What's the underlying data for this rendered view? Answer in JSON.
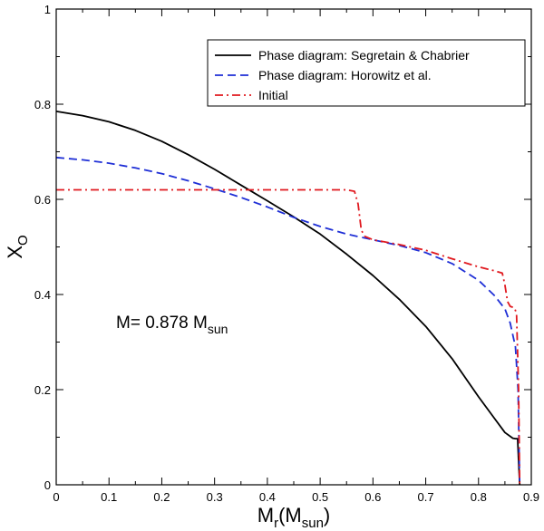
{
  "chart_data": {
    "type": "line",
    "title": "",
    "xlabel": "M",
    "xlabel_sub": "r",
    "xlabel_unit": "(M",
    "xlabel_unit_sub": "sun",
    "xlabel_close": ")",
    "ylabel": "X",
    "ylabel_sub": "O",
    "xlim": [
      0,
      0.9
    ],
    "ylim": [
      0,
      1
    ],
    "xticks": [
      0,
      0.1,
      0.2,
      0.3,
      0.4,
      0.5,
      0.6,
      0.7,
      0.8,
      0.9
    ],
    "yticks": [
      0,
      0.2,
      0.4,
      0.6,
      0.8,
      1
    ],
    "xtick_labels": [
      "0",
      "0.1",
      "0.2",
      "0.3",
      "0.4",
      "0.5",
      "0.6",
      "0.7",
      "0.8",
      "0.9"
    ],
    "ytick_labels": [
      "0",
      "0.2",
      "0.4",
      "0.6",
      "0.8",
      "1"
    ],
    "grid": false,
    "legend_position": "top-right",
    "annotation": {
      "text": "M= 0.878 M",
      "sub": "sun"
    },
    "series": [
      {
        "name": "Phase diagram: Segretain & Chabrier",
        "color": "#000000",
        "style": "solid",
        "x": [
          0,
          0.05,
          0.1,
          0.15,
          0.2,
          0.25,
          0.3,
          0.35,
          0.4,
          0.45,
          0.5,
          0.55,
          0.6,
          0.65,
          0.7,
          0.75,
          0.8,
          0.83,
          0.85,
          0.865,
          0.87,
          0.874,
          0.876,
          0.878
        ],
        "y": [
          0.785,
          0.776,
          0.763,
          0.745,
          0.722,
          0.694,
          0.663,
          0.63,
          0.597,
          0.563,
          0.527,
          0.485,
          0.44,
          0.39,
          0.333,
          0.265,
          0.185,
          0.14,
          0.11,
          0.098,
          0.097,
          0.097,
          0.05,
          0
        ]
      },
      {
        "name": "Phase diagram: Horowitz et al.",
        "color": "#1f2fd6",
        "style": "dashed",
        "x": [
          0,
          0.05,
          0.1,
          0.15,
          0.2,
          0.25,
          0.3,
          0.35,
          0.4,
          0.45,
          0.5,
          0.55,
          0.6,
          0.65,
          0.7,
          0.75,
          0.8,
          0.83,
          0.85,
          0.86,
          0.87,
          0.875,
          0.878
        ],
        "y": [
          0.688,
          0.683,
          0.676,
          0.666,
          0.654,
          0.639,
          0.622,
          0.604,
          0.584,
          0.562,
          0.543,
          0.527,
          0.515,
          0.503,
          0.488,
          0.465,
          0.43,
          0.398,
          0.37,
          0.34,
          0.29,
          0.2,
          0
        ]
      },
      {
        "name": "Initial",
        "color": "#e0191f",
        "style": "dashdot",
        "x": [
          0,
          0.05,
          0.1,
          0.2,
          0.3,
          0.4,
          0.5,
          0.55,
          0.565,
          0.572,
          0.578,
          0.585,
          0.6,
          0.65,
          0.7,
          0.75,
          0.8,
          0.83,
          0.845,
          0.85,
          0.855,
          0.86,
          0.868,
          0.872,
          0.876,
          0.878
        ],
        "y": [
          0.62,
          0.62,
          0.62,
          0.62,
          0.62,
          0.62,
          0.62,
          0.62,
          0.617,
          0.59,
          0.535,
          0.522,
          0.515,
          0.505,
          0.493,
          0.475,
          0.458,
          0.45,
          0.445,
          0.42,
          0.385,
          0.375,
          0.372,
          0.36,
          0.2,
          0
        ]
      }
    ]
  }
}
